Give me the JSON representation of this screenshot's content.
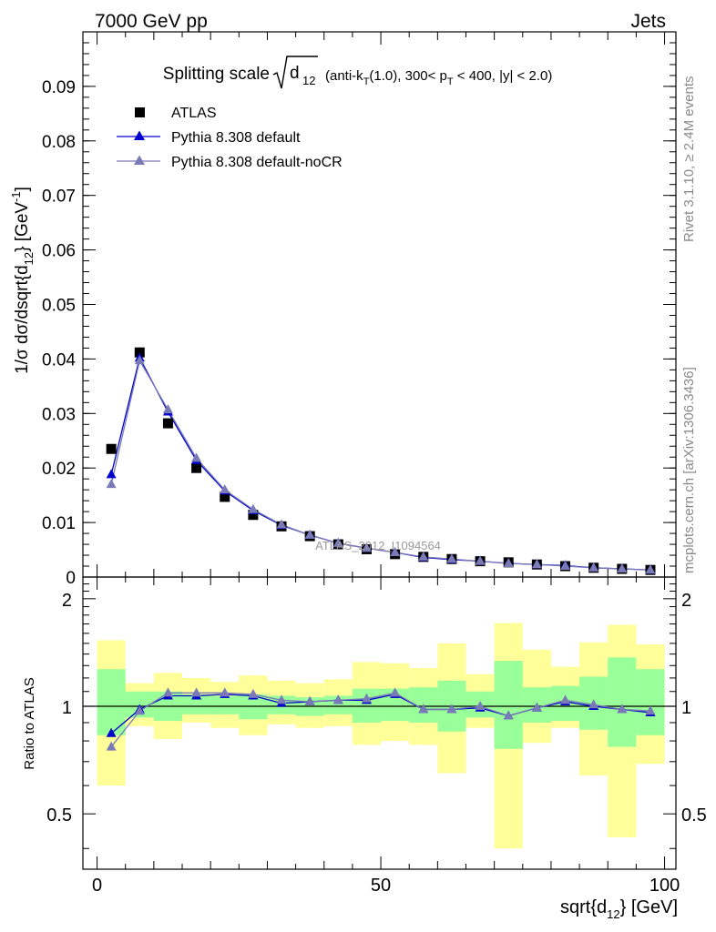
{
  "header": {
    "left": "7000 GeV pp",
    "right": "Jets"
  },
  "side_text": {
    "rivet": "Rivet 3.1.10, ≥ 2.4M events",
    "mcplots": "mcplots.cern.ch [arXiv:1306.3436]"
  },
  "watermark": "ATLAS_2012_I1094564",
  "colors": {
    "data": "#000000",
    "pythia_default": "#0000cc",
    "pythia_nocr": "#7a7ab8",
    "band_inner": "#99ff99",
    "band_outer": "#ffff99"
  },
  "chart_data": [
    {
      "type": "scatter",
      "title": {
        "main": "Splitting scale",
        "sqrt_arg": "d",
        "sqrt_sub": "12",
        "part1": "(anti-k",
        "sub1": "T",
        "part2": "(1.0), 300< p",
        "sub2": "T",
        "part3": " < 400, |y| < 2.0)"
      },
      "ylabel": "1/σ dσ/dsqrt{d₁₂} [GeV⁻¹]",
      "xlim": [
        -2.5,
        102
      ],
      "ylim": [
        0,
        0.1
      ],
      "y_ticks": [
        0,
        0.01,
        0.02,
        0.03,
        0.04,
        0.05,
        0.06,
        0.07,
        0.08,
        0.09
      ],
      "y_tick_labels": [
        "0",
        "0.01",
        "0.02",
        "0.03",
        "0.04",
        "0.05",
        "0.06",
        "0.07",
        "0.08",
        "0.09"
      ],
      "legend_position": "top-left",
      "x": [
        2.5,
        7.5,
        12.5,
        17.5,
        22.5,
        27.5,
        32.5,
        37.5,
        42.5,
        47.5,
        52.5,
        57.5,
        62.5,
        67.5,
        72.5,
        77.5,
        82.5,
        87.5,
        92.5,
        97.5
      ],
      "series": [
        {
          "name": "ATLAS",
          "marker": "square",
          "values": [
            0.0235,
            0.0412,
            0.0282,
            0.02,
            0.0147,
            0.0114,
            0.0093,
            0.0075,
            0.006,
            0.0051,
            0.0042,
            0.0037,
            0.0033,
            0.0029,
            0.0027,
            0.0023,
            0.002,
            0.0017,
            0.0015,
            0.0013
          ]
        },
        {
          "name": "Pythia 8.308 default",
          "marker": "triangle",
          "values": [
            0.0188,
            0.0402,
            0.0303,
            0.0214,
            0.0158,
            0.0122,
            0.0095,
            0.0077,
            0.0062,
            0.0053,
            0.0045,
            0.0036,
            0.0032,
            0.0029,
            0.0025,
            0.0023,
            0.0021,
            0.0017,
            0.0015,
            0.0013
          ]
        },
        {
          "name": "Pythia 8.308 default-noCR",
          "marker": "triangle",
          "values": [
            0.017,
            0.0397,
            0.0307,
            0.0218,
            0.016,
            0.0124,
            0.0096,
            0.0077,
            0.0062,
            0.0053,
            0.0045,
            0.0037,
            0.0033,
            0.0029,
            0.0025,
            0.0023,
            0.002,
            0.0017,
            0.0015,
            0.0013
          ]
        }
      ]
    },
    {
      "type": "scatter",
      "ylabel": "Ratio to ATLAS",
      "xlabel": "sqrt{d",
      "xlabel_sub": "12",
      "xlabel_tail": "} [GeV]",
      "xlim": [
        -2.5,
        102
      ],
      "ylim": [
        0.35,
        2.3
      ],
      "x_ticks": [
        0,
        50,
        100
      ],
      "x_tick_labels": [
        "0",
        "50",
        "100"
      ],
      "y_ticks": [
        0.5,
        1,
        2
      ],
      "y_tick_labels": [
        "0.5",
        "1",
        "2"
      ],
      "x": [
        2.5,
        7.5,
        12.5,
        17.5,
        22.5,
        27.5,
        32.5,
        37.5,
        42.5,
        47.5,
        52.5,
        57.5,
        62.5,
        67.5,
        72.5,
        77.5,
        82.5,
        87.5,
        92.5,
        97.5
      ],
      "bands": {
        "inner_low": [
          0.83,
          0.93,
          0.91,
          0.95,
          0.95,
          0.92,
          0.95,
          0.94,
          0.95,
          0.9,
          0.91,
          0.9,
          0.85,
          0.93,
          0.76,
          0.9,
          0.91,
          0.86,
          0.77,
          0.83
        ],
        "inner_high": [
          1.27,
          1.1,
          1.1,
          1.08,
          1.07,
          1.08,
          1.07,
          1.06,
          1.07,
          1.12,
          1.12,
          1.13,
          1.18,
          1.1,
          1.34,
          1.13,
          1.14,
          1.21,
          1.37,
          1.27
        ],
        "outer_low": [
          0.6,
          0.88,
          0.81,
          0.9,
          0.87,
          0.83,
          0.89,
          0.87,
          0.88,
          0.78,
          0.8,
          0.78,
          0.65,
          0.87,
          0.4,
          0.79,
          0.87,
          0.64,
          0.43,
          0.69
        ],
        "outer_high": [
          1.53,
          1.16,
          1.24,
          1.2,
          1.17,
          1.22,
          1.18,
          1.16,
          1.19,
          1.33,
          1.32,
          1.28,
          1.5,
          1.23,
          1.71,
          1.44,
          1.29,
          1.51,
          1.69,
          1.49
        ]
      },
      "series": [
        {
          "name": "Pythia 8.308 default",
          "values": [
            0.84,
            0.98,
            1.07,
            1.07,
            1.08,
            1.07,
            1.02,
            1.03,
            1.04,
            1.04,
            1.08,
            0.98,
            0.98,
            0.99,
            0.94,
            0.99,
            1.03,
            1.0,
            0.98,
            0.96
          ]
        },
        {
          "name": "Pythia 8.308 default-noCR",
          "values": [
            0.77,
            0.97,
            1.09,
            1.09,
            1.09,
            1.08,
            1.04,
            1.03,
            1.04,
            1.05,
            1.09,
            0.98,
            0.98,
            1.0,
            0.94,
            0.99,
            1.04,
            1.01,
            0.98,
            0.97
          ]
        }
      ]
    }
  ]
}
